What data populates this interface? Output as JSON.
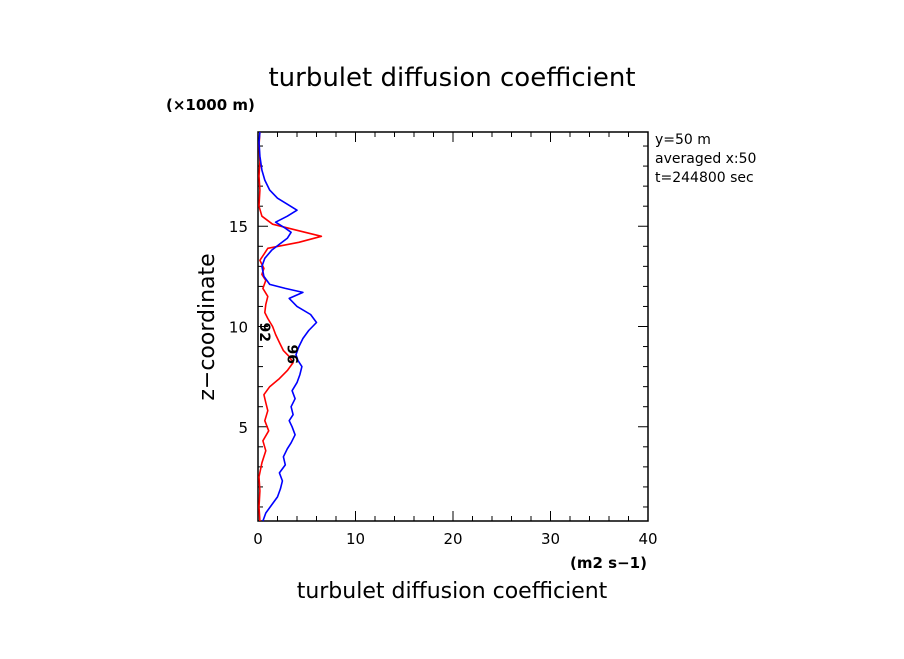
{
  "title": "turbulet diffusion coefficient",
  "y_unit": "(×1000 m)",
  "x_unit": "(m2 s−1)",
  "info": {
    "line1": "y=50  m",
    "line2": "averaged  x:50",
    "line3": "t=244800 sec"
  },
  "chart_data": {
    "type": "line",
    "title": "turbulet diffusion coefficient",
    "xlabel": "turbulet diffusion coefficient",
    "ylabel": "z−coordinate",
    "x_unit": "(m2 s−1)",
    "y_unit": "(×1000 m)",
    "xlim": [
      0,
      40
    ],
    "ylim": [
      0.3,
      19.7
    ],
    "x_ticks": [
      "0",
      "10",
      "20",
      "30",
      "40"
    ],
    "y_ticks": [
      "5",
      "10",
      "15"
    ],
    "grid": false,
    "series": [
      {
        "name": "92",
        "color": "#ff0000",
        "points": [
          [
            0.2,
            0.3
          ],
          [
            0.1,
            1.0
          ],
          [
            0.2,
            1.8
          ],
          [
            0.1,
            2.5
          ],
          [
            0.4,
            3.2
          ],
          [
            0.8,
            3.8
          ],
          [
            0.5,
            4.3
          ],
          [
            1.1,
            4.8
          ],
          [
            0.7,
            5.3
          ],
          [
            1.0,
            5.8
          ],
          [
            0.8,
            6.2
          ],
          [
            0.6,
            6.6
          ],
          [
            1.2,
            7.0
          ],
          [
            2.2,
            7.4
          ],
          [
            3.0,
            7.8
          ],
          [
            3.6,
            8.2
          ],
          [
            3.2,
            8.5
          ],
          [
            2.6,
            8.8
          ],
          [
            2.2,
            9.2
          ],
          [
            1.8,
            9.6
          ],
          [
            1.5,
            10.0
          ],
          [
            1.0,
            10.4
          ],
          [
            0.7,
            10.7
          ],
          [
            0.8,
            11.1
          ],
          [
            1.0,
            11.5
          ],
          [
            0.5,
            11.9
          ],
          [
            0.8,
            12.3
          ],
          [
            0.4,
            12.6
          ],
          [
            0.6,
            12.9
          ],
          [
            0.2,
            13.3
          ],
          [
            0.6,
            13.6
          ],
          [
            1.0,
            13.9
          ],
          [
            4.2,
            14.2
          ],
          [
            6.5,
            14.5
          ],
          [
            4.0,
            14.8
          ],
          [
            1.5,
            15.1
          ],
          [
            0.4,
            15.5
          ],
          [
            0.1,
            16.0
          ],
          [
            0.2,
            16.8
          ],
          [
            0.1,
            17.5
          ],
          [
            0.2,
            18.2
          ],
          [
            0.1,
            19.0
          ],
          [
            0.2,
            19.7
          ]
        ]
      },
      {
        "name": "96",
        "color": "#0000ff",
        "points": [
          [
            0.5,
            0.3
          ],
          [
            0.8,
            0.7
          ],
          [
            1.4,
            1.1
          ],
          [
            2.0,
            1.5
          ],
          [
            2.3,
            1.9
          ],
          [
            2.5,
            2.3
          ],
          [
            2.2,
            2.7
          ],
          [
            2.8,
            3.1
          ],
          [
            2.6,
            3.5
          ],
          [
            3.0,
            3.9
          ],
          [
            3.4,
            4.2
          ],
          [
            3.8,
            4.6
          ],
          [
            3.5,
            5.0
          ],
          [
            3.2,
            5.3
          ],
          [
            3.6,
            5.6
          ],
          [
            3.4,
            6.0
          ],
          [
            3.8,
            6.4
          ],
          [
            3.5,
            6.8
          ],
          [
            4.0,
            7.2
          ],
          [
            4.3,
            7.6
          ],
          [
            4.5,
            8.0
          ],
          [
            4.1,
            8.3
          ],
          [
            3.9,
            8.6
          ],
          [
            4.2,
            9.0
          ],
          [
            4.6,
            9.4
          ],
          [
            5.2,
            9.8
          ],
          [
            6.0,
            10.2
          ],
          [
            5.4,
            10.6
          ],
          [
            4.0,
            11.0
          ],
          [
            3.2,
            11.4
          ],
          [
            4.6,
            11.7
          ],
          [
            2.8,
            11.9
          ],
          [
            1.2,
            12.1
          ],
          [
            0.6,
            12.5
          ],
          [
            0.4,
            13.0
          ],
          [
            0.7,
            13.4
          ],
          [
            1.4,
            13.8
          ],
          [
            2.2,
            14.1
          ],
          [
            3.0,
            14.4
          ],
          [
            3.4,
            14.7
          ],
          [
            2.8,
            14.9
          ],
          [
            1.8,
            15.2
          ],
          [
            3.0,
            15.5
          ],
          [
            4.0,
            15.8
          ],
          [
            3.0,
            16.1
          ],
          [
            2.0,
            16.4
          ],
          [
            1.2,
            16.8
          ],
          [
            0.7,
            17.3
          ],
          [
            0.4,
            17.8
          ],
          [
            0.2,
            18.5
          ],
          [
            0.1,
            19.2
          ],
          [
            0.2,
            19.7
          ]
        ]
      }
    ],
    "annotations": [
      {
        "text": "92",
        "x": 0.2,
        "y": 10.2,
        "color": "#000000"
      },
      {
        "text": "96",
        "x": 3.0,
        "y": 9.1,
        "color": "#0000ff"
      }
    ]
  }
}
